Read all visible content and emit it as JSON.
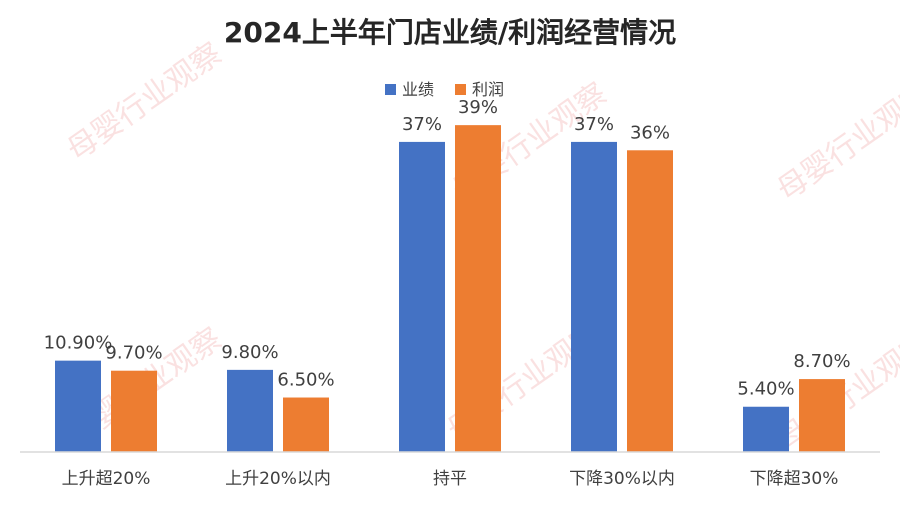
{
  "chart_data": {
    "type": "bar",
    "title": "2024上半年门店业绩/利润经营情况",
    "categories": [
      "上升超20%",
      "上升20%以内",
      "持平",
      "下降30%以内",
      "下降超30%"
    ],
    "series": [
      {
        "name": "业绩",
        "values": [
          10.9,
          9.8,
          37,
          37,
          5.4
        ],
        "labels": [
          "10.90%",
          "9.80%",
          "37%",
          "37%",
          "5.40%"
        ]
      },
      {
        "name": "利润",
        "values": [
          9.7,
          6.5,
          39,
          36,
          8.7
        ],
        "labels": [
          "9.70%",
          "6.50%",
          "39%",
          "36%",
          "8.70%"
        ]
      }
    ],
    "ylim": [
      0,
      42
    ],
    "xlabel": "",
    "ylabel": "",
    "grid": false,
    "legend_position": "top-center"
  },
  "colors": {
    "series": [
      "#4472C4",
      "#ED7D31"
    ],
    "title": "#262626",
    "label": "#404040",
    "axis": "#D9D9D9"
  },
  "watermark": "母婴行业观察"
}
